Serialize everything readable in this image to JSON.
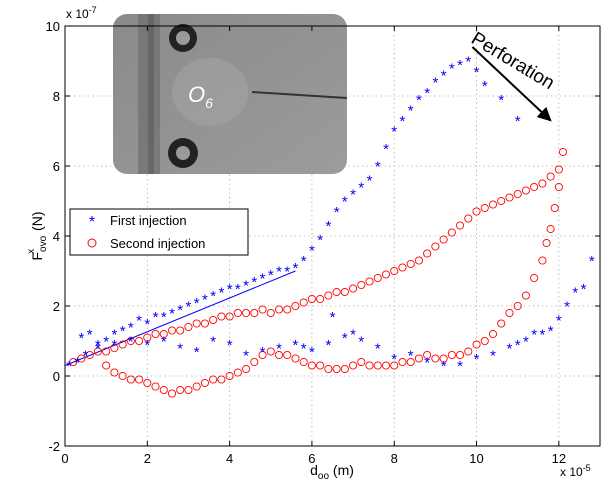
{
  "chart_data": {
    "type": "scatter",
    "xlabel_main": "d",
    "xlabel_sub": "oo",
    "xlabel_unit": "(m)",
    "ylabel_main": "F",
    "ylabel_sup": "x",
    "ylabel_sub": "ovo",
    "ylabel_unit": "(N)",
    "x_exponent": "x 10",
    "x_exponent_power": "-5",
    "y_exponent": "x 10",
    "y_exponent_power": "-7",
    "xlim": [
      0,
      13
    ],
    "ylim": [
      -2,
      10
    ],
    "x_ticks": [
      0,
      2,
      4,
      6,
      8,
      10,
      12
    ],
    "y_ticks": [
      -2,
      0,
      2,
      4,
      6,
      8,
      10
    ],
    "grid": true,
    "legend_position": "left",
    "annotation": "Perforation",
    "inset_label": "O",
    "inset_label_sub": "6",
    "colors": {
      "series1": "#0000ff",
      "series2": "#ff0000",
      "fit": "#0000ff",
      "arrow": "#000000"
    },
    "fit_line": {
      "x": [
        0,
        5.6
      ],
      "y": [
        0.3,
        3.0
      ]
    },
    "arrow": {
      "from": [
        9.9,
        9.4
      ],
      "to": [
        11.8,
        7.3
      ]
    },
    "series": [
      {
        "name": "First injection",
        "marker": "star",
        "x": [
          0.1,
          0.3,
          0.5,
          0.6,
          0.8,
          1.0,
          1.2,
          1.4,
          1.6,
          1.8,
          2.0,
          2.2,
          2.4,
          2.6,
          2.8,
          3.0,
          3.2,
          3.4,
          3.6,
          3.8,
          4.0,
          4.2,
          4.4,
          4.6,
          4.8,
          5.0,
          5.2,
          5.4,
          5.6,
          5.8,
          6.0,
          6.2,
          6.4,
          6.6,
          6.8,
          7.0,
          7.2,
          7.4,
          7.6,
          7.8,
          8.0,
          8.2,
          8.4,
          8.6,
          8.8,
          9.0,
          9.2,
          9.4,
          9.6,
          9.8,
          10.0,
          10.2,
          10.6,
          11.0,
          0.4,
          0.8,
          1.2,
          1.6,
          2.0,
          2.4,
          2.8,
          3.2,
          3.6,
          4.0,
          4.4,
          4.8,
          5.2,
          5.6,
          6.0,
          6.4,
          6.8,
          7.2,
          7.6,
          8.0,
          8.4,
          8.8,
          9.2,
          9.6,
          10.0,
          10.4,
          10.8,
          11.2,
          11.6,
          11.8,
          12.0,
          12.2,
          12.4,
          12.6,
          12.8,
          11.0,
          11.4,
          7.0,
          5.8,
          6.5
        ],
        "y": [
          0.3,
          0.4,
          0.6,
          1.2,
          0.9,
          1.0,
          1.2,
          1.3,
          1.4,
          1.6,
          1.5,
          1.7,
          1.7,
          1.8,
          1.9,
          2.0,
          2.1,
          2.2,
          2.3,
          2.4,
          2.5,
          2.5,
          2.6,
          2.7,
          2.8,
          2.9,
          3.0,
          3.0,
          3.1,
          3.3,
          3.6,
          3.9,
          4.3,
          4.7,
          5.0,
          5.2,
          5.4,
          5.6,
          6.0,
          6.5,
          7.0,
          7.3,
          7.6,
          7.9,
          8.1,
          8.4,
          8.6,
          8.8,
          8.9,
          9.0,
          8.7,
          8.3,
          7.9,
          7.3,
          1.1,
          0.8,
          0.9,
          1.0,
          0.9,
          1.0,
          0.8,
          0.7,
          1.0,
          0.9,
          0.6,
          0.7,
          0.8,
          0.9,
          0.7,
          0.9,
          1.1,
          1.0,
          0.8,
          0.5,
          0.6,
          0.4,
          0.3,
          0.3,
          0.5,
          0.6,
          0.8,
          1.0,
          1.2,
          1.3,
          1.6,
          2.0,
          2.4,
          2.5,
          3.3,
          0.9,
          1.2,
          1.2,
          0.8,
          1.7
        ]
      },
      {
        "name": "Second injection",
        "marker": "circle",
        "x": [
          0.2,
          0.4,
          0.6,
          0.8,
          1.0,
          1.2,
          1.4,
          1.6,
          1.8,
          2.0,
          2.2,
          2.4,
          2.6,
          2.8,
          3.0,
          3.2,
          3.4,
          3.6,
          3.8,
          4.0,
          4.2,
          4.4,
          4.6,
          4.8,
          5.0,
          5.2,
          5.4,
          5.6,
          5.8,
          6.0,
          6.2,
          6.4,
          6.6,
          6.8,
          7.0,
          7.2,
          7.4,
          7.6,
          7.8,
          8.0,
          8.2,
          8.4,
          8.6,
          8.8,
          9.0,
          9.2,
          9.4,
          9.6,
          9.8,
          10.0,
          10.2,
          10.4,
          10.6,
          10.8,
          11.0,
          11.2,
          11.4,
          11.6,
          11.8,
          12.0,
          12.1,
          12.0,
          11.9,
          11.8,
          11.7,
          11.6,
          11.4,
          11.2,
          11.0,
          10.8,
          10.6,
          10.4,
          10.2,
          10.0,
          9.8,
          9.6,
          9.4,
          9.2,
          9.0,
          8.8,
          8.6,
          8.4,
          8.2,
          8.0,
          7.8,
          7.6,
          7.4,
          7.2,
          7.0,
          6.8,
          6.6,
          6.4,
          6.2,
          6.0,
          5.8,
          5.6,
          5.4,
          5.2,
          5.0,
          4.8,
          4.6,
          4.4,
          4.2,
          4.0,
          3.8,
          3.6,
          3.4,
          3.2,
          3.0,
          2.8,
          2.6,
          2.4,
          2.2,
          2.0,
          1.8,
          1.6,
          1.4,
          1.2,
          1.0
        ],
        "y": [
          0.4,
          0.5,
          0.6,
          0.7,
          0.7,
          0.8,
          0.9,
          1.0,
          1.0,
          1.1,
          1.2,
          1.2,
          1.3,
          1.3,
          1.4,
          1.5,
          1.5,
          1.6,
          1.7,
          1.7,
          1.8,
          1.8,
          1.8,
          1.9,
          1.8,
          1.9,
          1.9,
          2.0,
          2.1,
          2.2,
          2.2,
          2.3,
          2.4,
          2.4,
          2.5,
          2.6,
          2.7,
          2.8,
          2.9,
          3.0,
          3.1,
          3.2,
          3.3,
          3.5,
          3.7,
          3.9,
          4.1,
          4.3,
          4.5,
          4.7,
          4.8,
          4.9,
          5.0,
          5.1,
          5.2,
          5.3,
          5.4,
          5.5,
          5.7,
          5.9,
          6.4,
          5.4,
          4.8,
          4.2,
          3.8,
          3.3,
          2.8,
          2.3,
          2.0,
          1.8,
          1.5,
          1.2,
          1.0,
          0.9,
          0.7,
          0.6,
          0.6,
          0.5,
          0.5,
          0.6,
          0.5,
          0.4,
          0.4,
          0.3,
          0.3,
          0.3,
          0.3,
          0.4,
          0.3,
          0.2,
          0.2,
          0.2,
          0.3,
          0.3,
          0.4,
          0.5,
          0.6,
          0.6,
          0.7,
          0.6,
          0.4,
          0.2,
          0.1,
          0.0,
          -0.1,
          -0.1,
          -0.2,
          -0.3,
          -0.4,
          -0.4,
          -0.5,
          -0.4,
          -0.3,
          -0.2,
          -0.1,
          -0.1,
          0.0,
          0.1,
          0.3
        ]
      }
    ]
  }
}
